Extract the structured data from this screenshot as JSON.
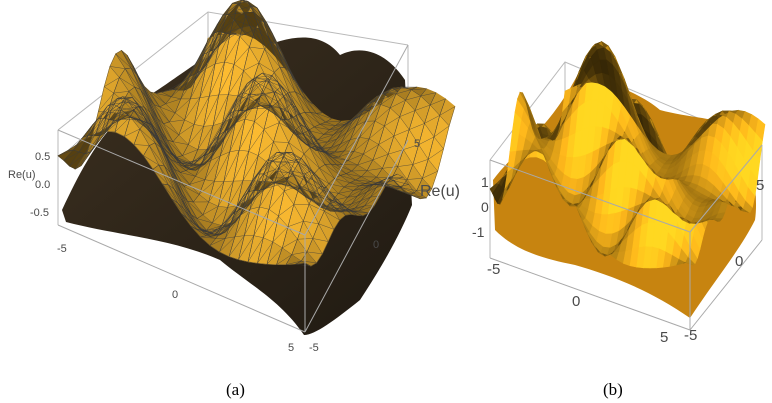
{
  "chart_data": [
    {
      "type": "surface3d",
      "panel_label": "(a)",
      "style": "triangulated-mesh",
      "zlabel": "Re(u)",
      "z_ticks": [
        "0.5",
        "0.0",
        "-0.5"
      ],
      "x_ticks": [
        "-5",
        "0",
        "5"
      ],
      "y_ticks": [
        "-5",
        "0",
        "5"
      ],
      "x_range": [
        -5,
        5
      ],
      "y_range": [
        -5,
        5
      ],
      "z_range": [
        -0.8,
        0.8
      ],
      "surface_color": "#d9a12a",
      "mesh_color": "#3a3a3a"
    },
    {
      "type": "surface3d",
      "panel_label": "(b)",
      "style": "smooth",
      "zlabel": "Re(u)",
      "z_ticks": [
        "1",
        "0",
        "-1"
      ],
      "x_ticks": [
        "-5",
        "0",
        "5"
      ],
      "y_ticks": [
        "-5",
        "0",
        "5"
      ],
      "x_range": [
        -5,
        5
      ],
      "y_range": [
        -5,
        5
      ],
      "z_range": [
        -1.3,
        1.3
      ],
      "surface_color": "#f0ad1a"
    }
  ]
}
